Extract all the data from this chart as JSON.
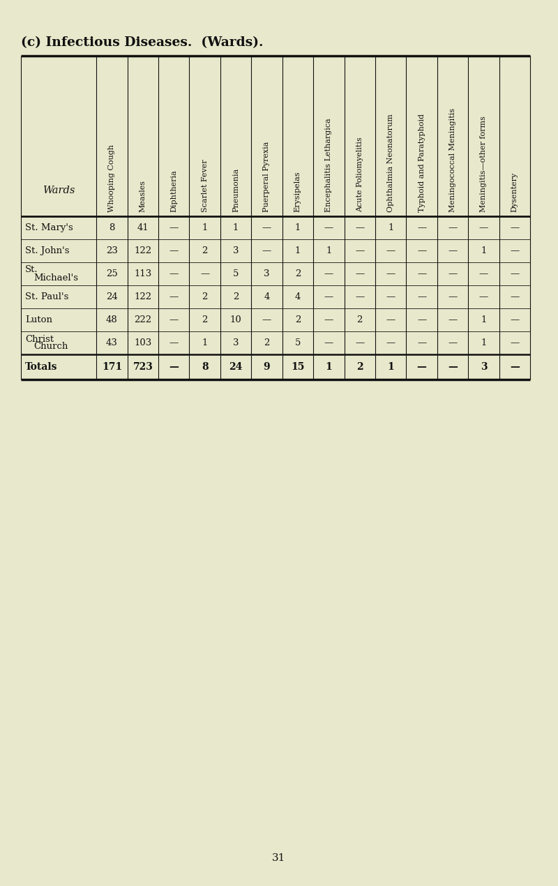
{
  "title": "(c) Infectious Diseases.  (Wards).",
  "page_background": "#e8e8cc",
  "columns": [
    "Wards",
    "Whooping Cough",
    "Measles",
    "Diphtheria",
    "Scarlet Fever",
    "Pneumonia",
    "Puerperal Pyrexia",
    "Erysipelas",
    "Encephalitis Lethargica",
    "Acute Poliomyelitis",
    "Ophthalmia Neonatorum",
    "Typhoid and Paratyphoid",
    "Meningococcal Meningitis",
    "Meningitis—other forms",
    "Dysentery"
  ],
  "rows": [
    [
      "St. Mary's",
      "8",
      "41",
      "—",
      "1",
      "1",
      "—",
      "1",
      "—",
      "—",
      "1",
      "—",
      "—",
      "—",
      "—"
    ],
    [
      "St. John's",
      "23",
      "122",
      "—",
      "2",
      "3",
      "—",
      "1",
      "1",
      "—",
      "—",
      "—",
      "—",
      "1",
      "—"
    ],
    [
      "St.\nMichael's",
      "25",
      "113",
      "—",
      "—",
      "5",
      "3",
      "2",
      "—",
      "—",
      "—",
      "—",
      "—",
      "—",
      "—"
    ],
    [
      "St. Paul's",
      "24",
      "122",
      "—",
      "2",
      "2",
      "4",
      "4",
      "—",
      "—",
      "—",
      "—",
      "—",
      "—",
      "—"
    ],
    [
      "Luton",
      "48",
      "222",
      "—",
      "2",
      "10",
      "—",
      "2",
      "—",
      "2",
      "—",
      "—",
      "—",
      "1",
      "—"
    ],
    [
      "Christ\nChurch",
      "43",
      "103",
      "—",
      "1",
      "3",
      "2",
      "5",
      "—",
      "—",
      "—",
      "—",
      "—",
      "1",
      "—"
    ],
    [
      "Totals",
      "171",
      "723",
      "—",
      "8",
      "24",
      "9",
      "15",
      "1",
      "2",
      "1",
      "—",
      "—",
      "3",
      "—"
    ]
  ],
  "col_widths_rel": [
    1.9,
    0.78,
    0.78,
    0.78,
    0.78,
    0.78,
    0.78,
    0.78,
    0.78,
    0.78,
    0.78,
    0.78,
    0.78,
    0.78,
    0.78
  ],
  "text_color": "#111111",
  "line_color": "#111111",
  "totals_row_idx": 6,
  "page_number": "31",
  "title_fontsize": 13.5,
  "header_fontsize": 8.0,
  "data_fontsize": 9.5,
  "totals_fontsize": 10.0
}
